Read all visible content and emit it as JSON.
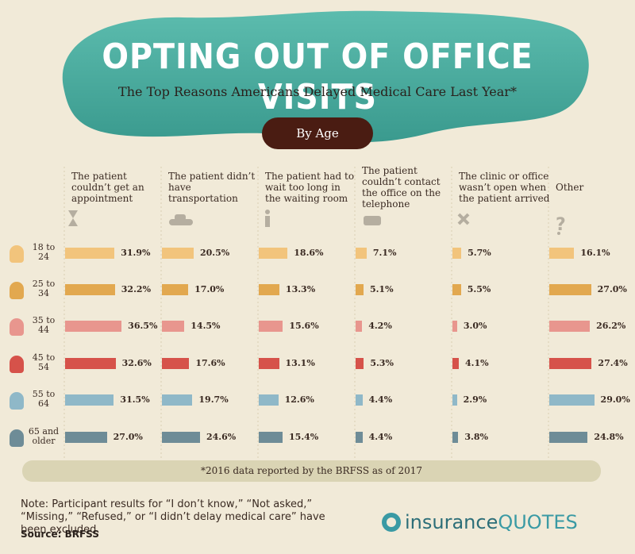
{
  "chart_data": {
    "type": "bar",
    "title": "OPTING OUT OF OFFICE VISITS",
    "subtitle": "The Top Reasons Americans Delayed Medical Care Last Year*",
    "group_label": "By Age",
    "categories": [
      "18 to 24",
      "25 to 34",
      "35 to 44",
      "45 to 54",
      "55 to 64",
      "65 and older"
    ],
    "colors": [
      "#f2c47c",
      "#e2a84f",
      "#e8968e",
      "#d6524a",
      "#8fb8c8",
      "#6e8c97"
    ],
    "series": [
      {
        "name": "The patient couldn’t get an appointment",
        "values": [
          31.9,
          32.2,
          36.5,
          32.6,
          31.5,
          27.0
        ],
        "value_labels": [
          "31.9%",
          "32.2%",
          "36.5%",
          "32.6%",
          "31.5%",
          "27.0%"
        ]
      },
      {
        "name": "The patient didn’t have transportation",
        "values": [
          20.5,
          17.0,
          14.5,
          17.6,
          19.7,
          24.6
        ],
        "value_labels": [
          "20.5%",
          "17.0%",
          "14.5%",
          "17.6%",
          "19.7%",
          "24.6%"
        ]
      },
      {
        "name": "The patient had to wait too long in the waiting room",
        "values": [
          18.6,
          13.3,
          15.6,
          13.1,
          12.6,
          15.4
        ],
        "value_labels": [
          "18.6%",
          "13.3%",
          "15.6%",
          "13.1%",
          "12.6%",
          "15.4%"
        ]
      },
      {
        "name": "The patient couldn’t contact the office on the telephone",
        "values": [
          7.1,
          5.1,
          4.2,
          5.3,
          4.4,
          4.4
        ],
        "value_labels": [
          "7.1%",
          "5.1%",
          "4.2%",
          "5.3%",
          "4.4%",
          "4.4%"
        ]
      },
      {
        "name": "The clinic or office wasn’t open when the patient arrived",
        "values": [
          5.7,
          5.5,
          3.0,
          4.1,
          2.9,
          3.8
        ],
        "value_labels": [
          "5.7%",
          "5.5%",
          "3.0%",
          "4.1%",
          "2.9%",
          "3.8%"
        ]
      },
      {
        "name": "Other",
        "values": [
          16.1,
          27.0,
          26.2,
          27.4,
          29.0,
          24.8
        ],
        "value_labels": [
          "16.1%",
          "27.0%",
          "26.2%",
          "27.4%",
          "29.0%",
          "24.8%"
        ]
      }
    ],
    "footnote": "*2016 data reported by the BRFSS as of 2017"
  },
  "note": "Note: Participant results for “I don’t know,” “Not asked,” “Missing,” “Refused,” or “I didn’t delay medical care” have been excluded.",
  "source": "Source: BRFSS",
  "brand": {
    "name": "insurance",
    "accent": "QUOTES"
  }
}
